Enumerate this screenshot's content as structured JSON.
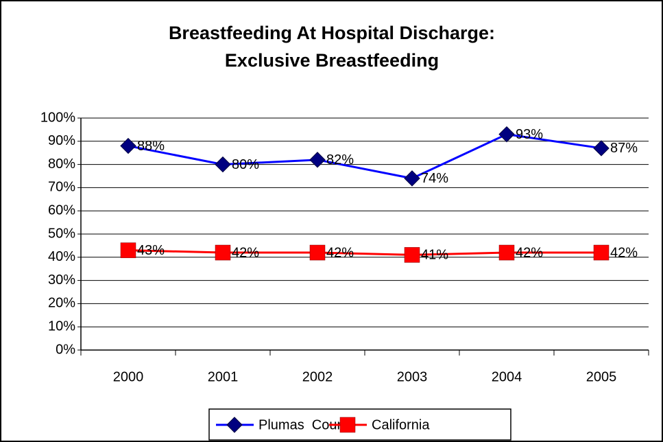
{
  "chart_data": {
    "type": "line",
    "title": [
      "Breastfeeding At Hospital Discharge:",
      "Exclusive Breastfeeding"
    ],
    "categories": [
      "2000",
      "2001",
      "2002",
      "2003",
      "2004",
      "2005"
    ],
    "series": [
      {
        "name": "Plumas  County",
        "color": "#0000ff",
        "marker_color": "#000080",
        "values": [
          88,
          80,
          82,
          74,
          93,
          87
        ],
        "value_labels": [
          "88%",
          "80%",
          "82%",
          "74%",
          "93%",
          "87%"
        ]
      },
      {
        "name": "California",
        "color": "#ff0000",
        "marker_color": "#ff0000",
        "values": [
          43,
          42,
          42,
          41,
          42,
          42
        ],
        "value_labels": [
          "43%",
          "42%",
          "42%",
          "41%",
          "42%",
          "42%"
        ]
      }
    ],
    "ylim": [
      0,
      100
    ],
    "yticks": [
      {
        "value": 0,
        "label": "0%"
      },
      {
        "value": 10,
        "label": "10%"
      },
      {
        "value": 20,
        "label": "20%"
      },
      {
        "value": 30,
        "label": "30%"
      },
      {
        "value": 40,
        "label": "40%"
      },
      {
        "value": 50,
        "label": "50%"
      },
      {
        "value": 60,
        "label": "60%"
      },
      {
        "value": 70,
        "label": "70%"
      },
      {
        "value": 80,
        "label": "80%"
      },
      {
        "value": 90,
        "label": "90%"
      },
      {
        "value": 100,
        "label": "100%"
      }
    ],
    "grid": true,
    "legend": "bottom"
  }
}
